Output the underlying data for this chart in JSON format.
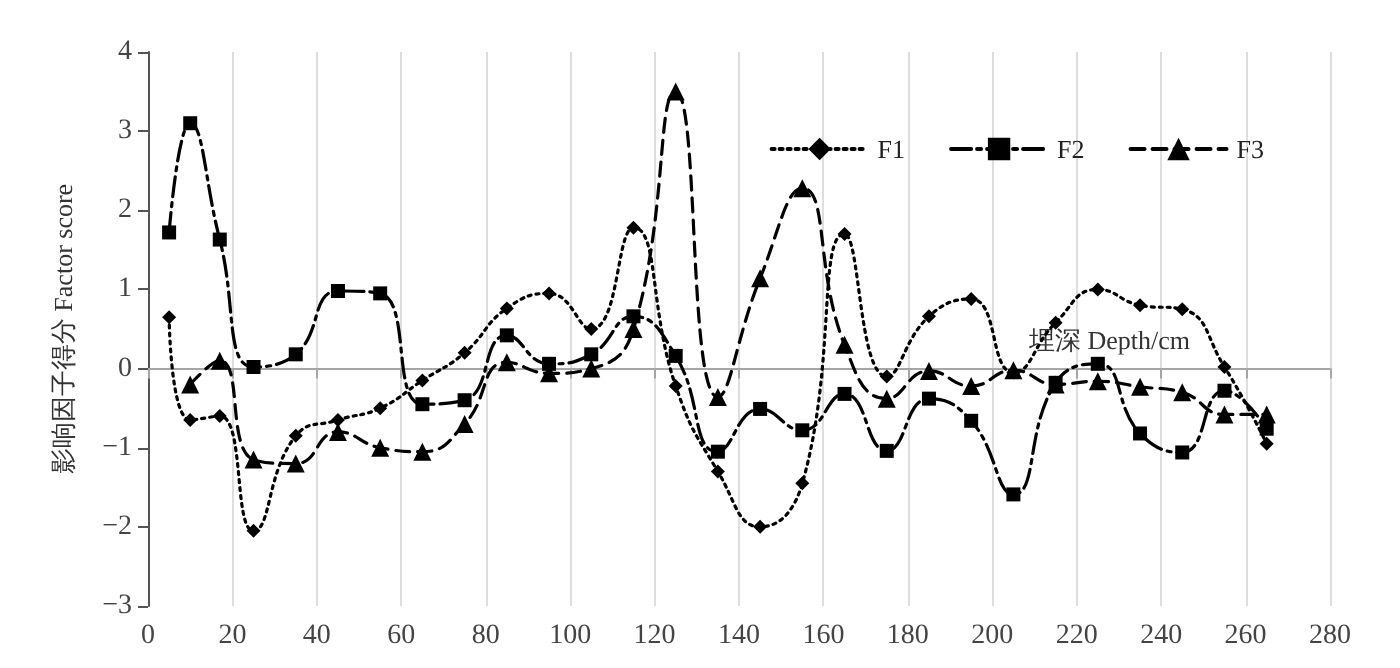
{
  "chart_data": {
    "type": "line",
    "xlabel": "埋深 Depth/cm",
    "ylabel": "影响因子得分 Factor score",
    "xlim": [
      0,
      280
    ],
    "xticks": [
      0,
      20,
      40,
      60,
      80,
      100,
      120,
      140,
      160,
      180,
      200,
      220,
      240,
      260,
      280
    ],
    "ylim": [
      -3,
      4
    ],
    "yticks": [
      -3,
      -2,
      -1,
      0,
      1,
      2,
      3,
      4
    ],
    "grid": "x",
    "legend": "top right",
    "x": [
      5,
      10,
      17,
      25,
      35,
      45,
      55,
      65,
      75,
      85,
      95,
      105,
      115,
      125,
      135,
      145,
      155,
      165,
      175,
      185,
      195,
      205,
      215,
      225,
      235,
      245,
      255,
      265
    ],
    "series": [
      {
        "name": "F1",
        "color": "#000000",
        "marker": "diamond",
        "line_style": "dotted",
        "values": [
          0.65,
          -0.65,
          -0.6,
          -2.05,
          -0.85,
          -0.65,
          -0.5,
          -0.15,
          0.2,
          0.76,
          0.95,
          0.5,
          1.78,
          -0.22,
          -1.3,
          -2.0,
          -1.45,
          1.7,
          -0.1,
          0.66,
          0.88,
          -0.05,
          0.58,
          1.0,
          0.8,
          0.75,
          0.02,
          -0.95
        ]
      },
      {
        "name": "F2",
        "color": "#000000",
        "marker": "square",
        "line_style": "dashdot",
        "values": [
          1.72,
          3.1,
          1.63,
          0.02,
          0.18,
          0.98,
          0.95,
          -0.45,
          -0.4,
          0.42,
          0.06,
          0.18,
          0.66,
          0.16,
          -1.05,
          -0.51,
          -0.78,
          -0.32,
          -1.04,
          -0.38,
          -0.66,
          -1.59,
          -0.18,
          0.06,
          -0.82,
          -1.06,
          -0.28,
          -0.76
        ]
      },
      {
        "name": "F3",
        "color": "#000000",
        "marker": "triangle",
        "line_style": "dashed",
        "values": [
          null,
          -0.2,
          0.1,
          -1.15,
          -1.2,
          -0.8,
          -1.0,
          -1.05,
          -0.7,
          0.08,
          -0.06,
          0.0,
          0.5,
          3.5,
          -0.36,
          1.14,
          2.28,
          0.3,
          -0.38,
          -0.03,
          -0.22,
          -0.02,
          -0.2,
          -0.16,
          -0.23,
          -0.3,
          -0.58,
          -0.58
        ]
      }
    ]
  }
}
